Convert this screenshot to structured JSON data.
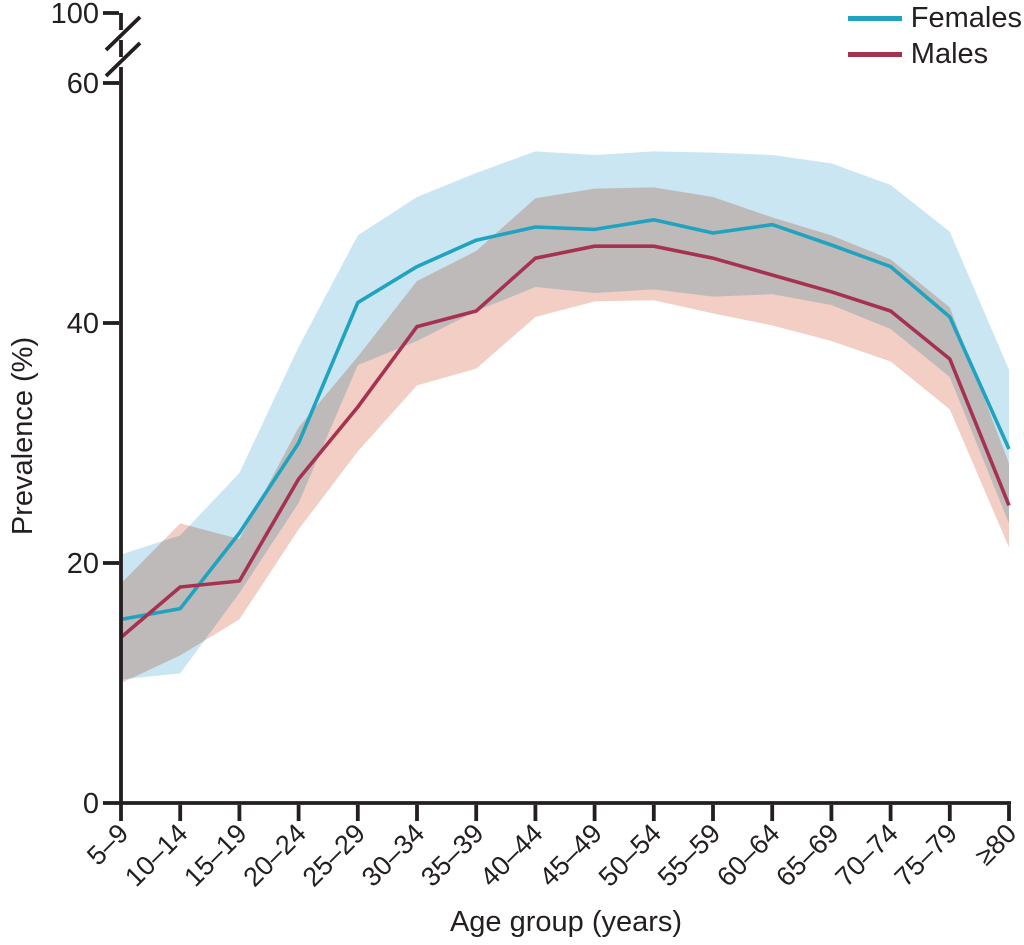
{
  "chart_data": {
    "type": "line",
    "title": "",
    "xlabel": "Age group (years)",
    "ylabel": "Prevalence (%)",
    "grid": false,
    "legend_position": "top-right",
    "axis_break": true,
    "ylim": [
      0,
      60
    ],
    "y_ticks": [
      0,
      20,
      40,
      60
    ],
    "y_tick_after_break": 100,
    "categories": [
      "5–9",
      "10–14",
      "15–19",
      "20–24",
      "25–29",
      "30–34",
      "35–39",
      "40–44",
      "45–49",
      "50–54",
      "55–59",
      "60–64",
      "65–69",
      "70–74",
      "75–79",
      "≥80"
    ],
    "series": [
      {
        "name": "Females",
        "color": "#1FA3BF",
        "band_color": "#C9E6F2",
        "values": [
          15.3,
          16.2,
          22.5,
          30.0,
          41.7,
          44.7,
          46.9,
          48.0,
          47.8,
          48.6,
          47.5,
          48.2,
          46.5,
          44.7,
          40.5,
          29.5
        ],
        "ci_low": [
          10.3,
          10.8,
          17.5,
          25.0,
          36.5,
          38.5,
          41.0,
          43.0,
          42.5,
          42.8,
          42.2,
          42.4,
          41.5,
          39.5,
          35.5,
          23.3
        ],
        "ci_high": [
          20.7,
          22.3,
          27.5,
          38.0,
          47.3,
          50.5,
          52.5,
          54.3,
          54.0,
          54.3,
          54.2,
          54.0,
          53.3,
          51.5,
          47.6,
          36.1
        ]
      },
      {
        "name": "Males",
        "color": "#A63252",
        "band_color": "#F2CEC4",
        "values": [
          13.8,
          18.0,
          18.5,
          27.0,
          33.0,
          39.7,
          41.0,
          45.4,
          46.4,
          46.4,
          45.4,
          44.0,
          42.6,
          41.0,
          37.0,
          24.8
        ],
        "ci_low": [
          10.0,
          12.3,
          15.3,
          22.8,
          29.3,
          34.8,
          36.2,
          40.5,
          41.8,
          41.9,
          40.8,
          39.8,
          38.5,
          36.8,
          32.8,
          21.3
        ],
        "ci_high": [
          18.3,
          23.3,
          22.0,
          31.3,
          37.2,
          43.5,
          46.0,
          50.4,
          51.2,
          51.3,
          50.5,
          48.8,
          47.3,
          45.3,
          41.3,
          28.3
        ]
      }
    ]
  }
}
